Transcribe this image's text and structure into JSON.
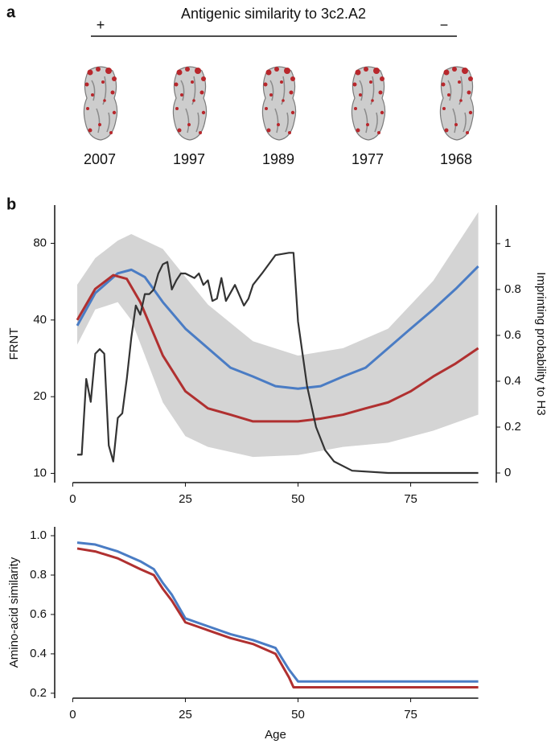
{
  "panel_a": {
    "label": "a",
    "title": "Antigenic similarity to 3c2.A2",
    "plus": "+",
    "minus": "−",
    "years": [
      "2007",
      "1997",
      "1989",
      "1977",
      "1968"
    ]
  },
  "panel_b": {
    "label": "b"
  },
  "chart_data": [
    {
      "type": "line",
      "ylabel": "FRNT",
      "y2label": "Imprinting probability to H3",
      "xlim": [
        -4,
        94
      ],
      "xticks": [
        0,
        25,
        50,
        75
      ],
      "ylim": [
        9.2,
        113
      ],
      "yticks": [
        10,
        20,
        40,
        80
      ],
      "yscale": "log",
      "y2lim": [
        -0.042,
        1.168
      ],
      "y2ticks": [
        0,
        0.2,
        0.4,
        0.6,
        0.8,
        1
      ],
      "bands": [
        {
          "color": "#d4d4d4",
          "x": [
            1,
            5,
            10,
            13,
            20,
            25,
            30,
            40,
            50,
            60,
            70,
            80,
            90
          ],
          "upper": [
            55,
            70,
            82,
            87,
            76,
            59,
            46,
            33,
            29,
            31,
            37,
            57,
            106
          ],
          "lower": [
            32,
            44,
            47,
            40,
            19,
            14,
            12.7,
            11.6,
            11.8,
            12.7,
            13.2,
            14.7,
            17
          ]
        }
      ],
      "series": [
        {
          "color": "#4a7cc4",
          "x": [
            1,
            5,
            10,
            13,
            16,
            20,
            25,
            30,
            35,
            40,
            45,
            50,
            55,
            60,
            65,
            70,
            75,
            80,
            85,
            90
          ],
          "values": [
            38,
            51,
            61,
            63,
            59,
            47,
            37,
            31,
            26,
            24,
            22,
            21.5,
            22,
            24,
            26,
            31,
            37,
            44,
            53,
            65
          ]
        },
        {
          "color": "#b03030",
          "x": [
            1,
            5,
            9,
            12,
            15,
            20,
            25,
            30,
            35,
            40,
            45,
            50,
            55,
            60,
            65,
            70,
            75,
            80,
            85,
            90
          ],
          "values": [
            40,
            53,
            60,
            58,
            47,
            29,
            21,
            18,
            17,
            16,
            16,
            16,
            16.4,
            17,
            18,
            19,
            21,
            24,
            27,
            31
          ]
        },
        {
          "color": "#333333",
          "axis": "y2",
          "x": [
            1,
            2,
            3,
            4,
            5,
            6,
            7,
            8,
            9,
            10,
            11,
            12,
            13,
            14,
            15,
            16,
            17,
            18,
            19,
            20,
            21,
            22,
            23,
            24,
            25,
            27,
            28,
            29,
            30,
            31,
            32,
            33,
            34,
            36,
            38,
            39,
            40,
            42,
            45,
            48,
            49,
            50,
            52,
            54,
            56,
            58,
            62,
            70,
            90
          ],
          "values": [
            0.08,
            0.08,
            0.41,
            0.31,
            0.52,
            0.54,
            0.52,
            0.12,
            0.05,
            0.24,
            0.26,
            0.41,
            0.59,
            0.73,
            0.69,
            0.78,
            0.78,
            0.8,
            0.87,
            0.91,
            0.92,
            0.8,
            0.84,
            0.87,
            0.87,
            0.85,
            0.87,
            0.82,
            0.84,
            0.75,
            0.76,
            0.85,
            0.75,
            0.82,
            0.73,
            0.76,
            0.82,
            0.87,
            0.95,
            0.96,
            0.96,
            0.66,
            0.38,
            0.2,
            0.1,
            0.05,
            0.01,
            0,
            0
          ]
        }
      ]
    },
    {
      "type": "line",
      "ylabel": "Amino-acid similarity",
      "xlabel": "Age",
      "xlim": [
        -4,
        94
      ],
      "xticks": [
        0,
        25,
        50,
        75
      ],
      "ylim": [
        0.175,
        1.045
      ],
      "yticks": [
        0.2,
        0.4,
        0.6,
        0.8,
        {
          "value": 1,
          "label": "1.0"
        }
      ],
      "series": [
        {
          "color": "#4a7cc4",
          "x": [
            1,
            5,
            10,
            15,
            18,
            20,
            22,
            25,
            30,
            35,
            40,
            45,
            48,
            50,
            90
          ],
          "values": [
            0.965,
            0.955,
            0.92,
            0.87,
            0.83,
            0.76,
            0.7,
            0.58,
            0.54,
            0.5,
            0.47,
            0.43,
            0.32,
            0.26,
            0.26
          ]
        },
        {
          "color": "#b03030",
          "x": [
            1,
            5,
            10,
            15,
            18,
            20,
            22,
            25,
            30,
            35,
            40,
            45,
            48,
            49,
            90
          ],
          "values": [
            0.935,
            0.92,
            0.885,
            0.83,
            0.8,
            0.73,
            0.67,
            0.56,
            0.52,
            0.48,
            0.45,
            0.4,
            0.28,
            0.23,
            0.23
          ]
        }
      ]
    }
  ]
}
